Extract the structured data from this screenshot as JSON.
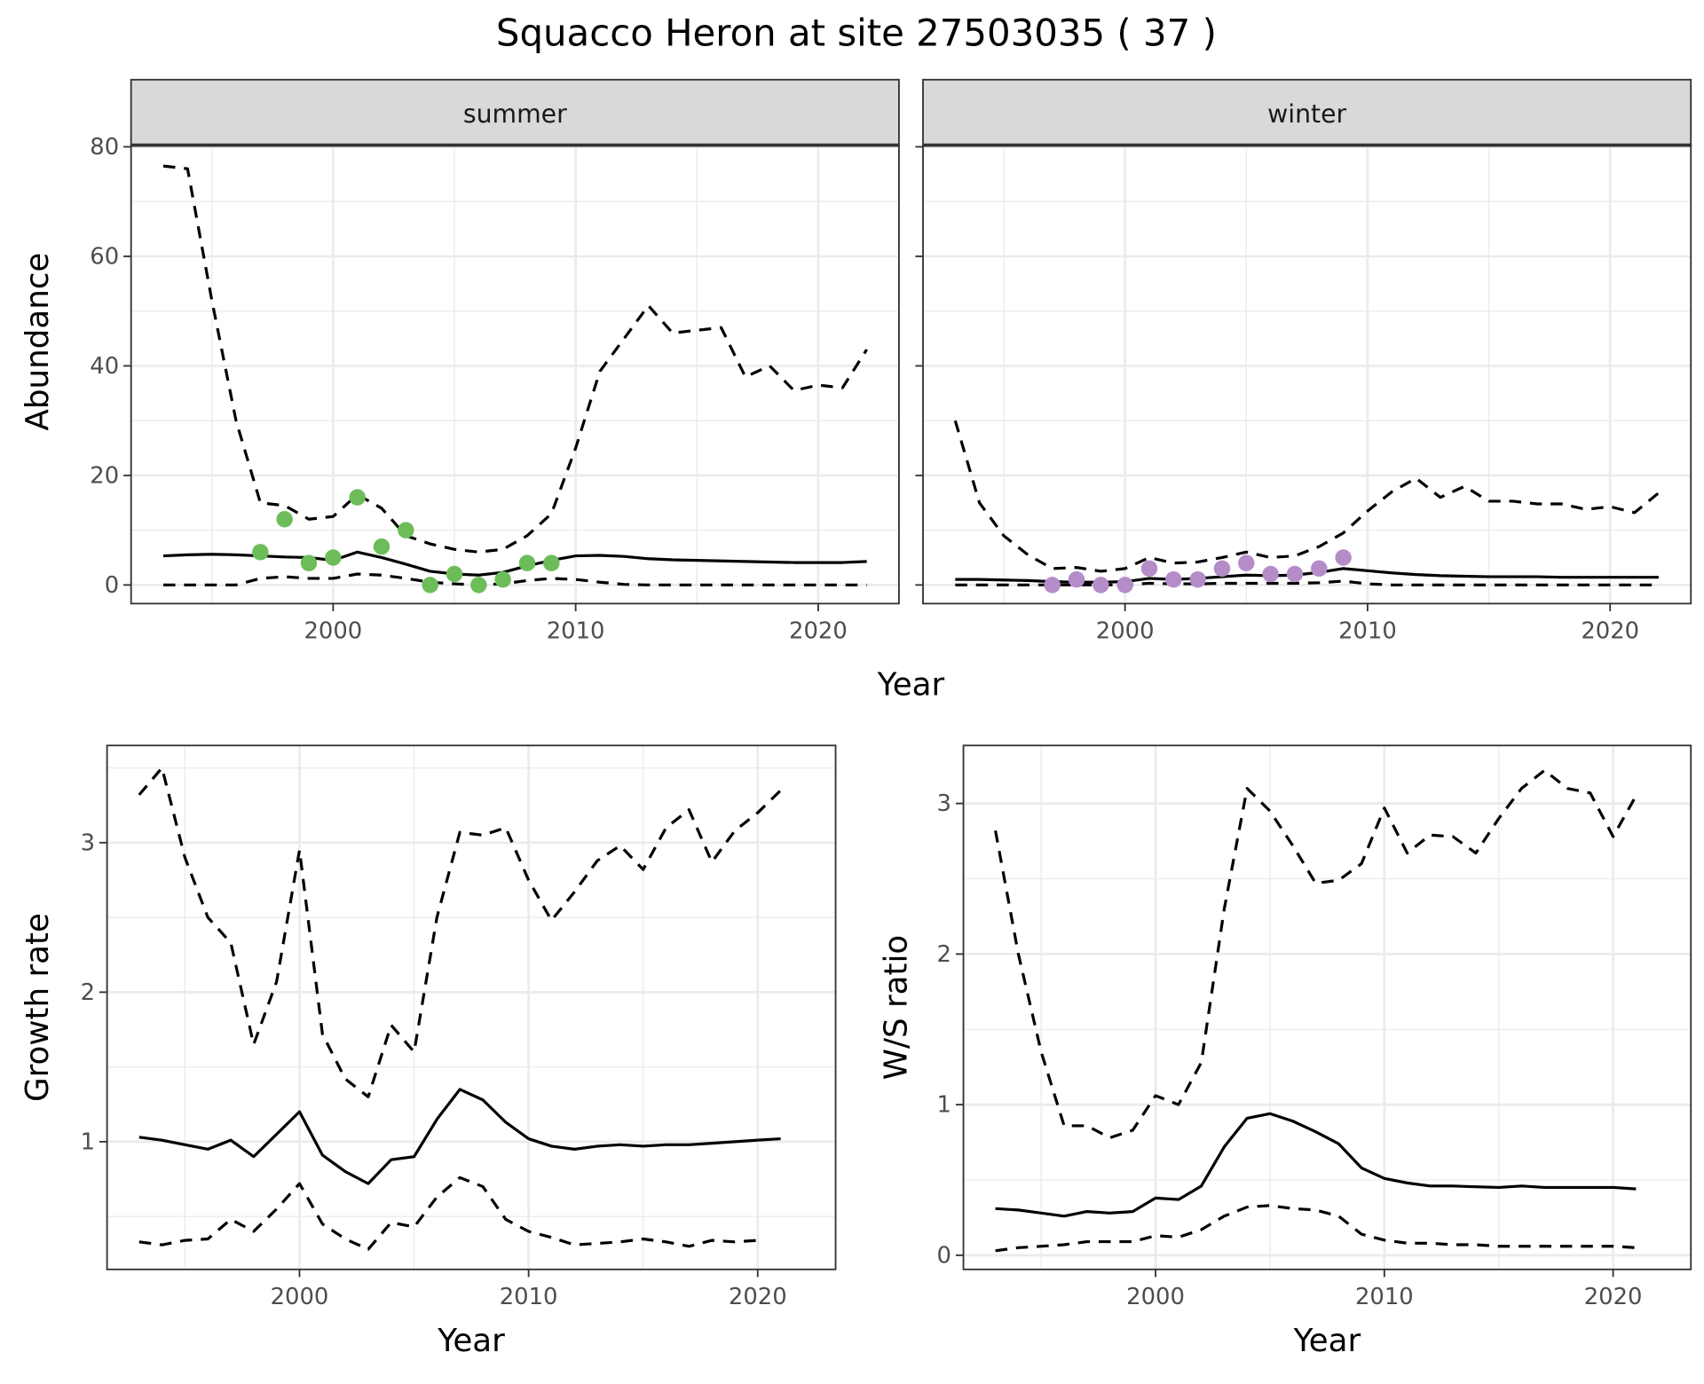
{
  "title": "Squacco Heron at site 27503035 ( 37 )",
  "colors": {
    "summer_points": "#6cbd5a",
    "winter_points": "#b48cc8",
    "line": "#000000",
    "strip": "#d9d9d9",
    "grid": "#ebebeb"
  },
  "chart_data": [
    {
      "id": "summer",
      "type": "line",
      "strip": "summer",
      "ylabel": "Abundance",
      "xlabel": "Year",
      "xlim": [
        1991.67,
        2023.33
      ],
      "ylim": [
        -3.4,
        80.3
      ],
      "xticks": [
        2000,
        2010,
        2020
      ],
      "yticks": [
        0,
        20,
        40,
        60,
        80
      ],
      "grid": true,
      "x": [
        1993,
        1994,
        1995,
        1996,
        1997,
        1998,
        1999,
        2000,
        2001,
        2002,
        2003,
        2004,
        2005,
        2006,
        2007,
        2008,
        2009,
        2010,
        2011,
        2012,
        2013,
        2014,
        2015,
        2016,
        2017,
        2018,
        2019,
        2020,
        2021,
        2022
      ],
      "series": [
        {
          "linetype": "dashed",
          "values": [
            76.5,
            76,
            52,
            30,
            15,
            14.5,
            12,
            12.5,
            16.5,
            14,
            9,
            7.5,
            6.5,
            6,
            6.5,
            9,
            13,
            25,
            39,
            45,
            51,
            46,
            46.5,
            47,
            38,
            40,
            35.5,
            36.5,
            36,
            43
          ]
        },
        {
          "linetype": "solid",
          "values": [
            5.3,
            5.5,
            5.6,
            5.5,
            5.3,
            5.1,
            5.0,
            4.5,
            6,
            5,
            3.8,
            2.5,
            2,
            1.8,
            2.3,
            3.5,
            4.5,
            5.3,
            5.4,
            5.2,
            4.8,
            4.6,
            4.5,
            4.4,
            4.3,
            4.2,
            4.1,
            4.1,
            4.1,
            4.3
          ]
        },
        {
          "linetype": "dashed",
          "values": [
            0,
            0,
            0,
            0,
            1.2,
            1.5,
            1.2,
            1.2,
            2,
            1.8,
            1.2,
            0.5,
            0.2,
            0,
            0.2,
            0.8,
            1.2,
            1,
            0.5,
            0.1,
            0,
            0,
            0,
            0,
            0,
            0,
            0,
            0,
            0,
            0
          ]
        }
      ],
      "points": {
        "color": "#6cbd5a",
        "x": [
          1997,
          1998,
          1999,
          2000,
          2001,
          2002,
          2003,
          2004,
          2005,
          2006,
          2007,
          2008,
          2009
        ],
        "y": [
          6,
          12,
          4,
          5,
          16,
          7,
          10,
          0,
          2,
          0,
          1,
          4,
          4
        ]
      }
    },
    {
      "id": "winter",
      "type": "line",
      "strip": "winter",
      "ylabel": "",
      "xlabel": "",
      "xlim": [
        1991.67,
        2023.33
      ],
      "ylim": [
        -3.4,
        80.3
      ],
      "xticks": [
        2000,
        2010,
        2020
      ],
      "yticks": [
        0,
        20,
        40,
        60,
        80
      ],
      "grid": true,
      "x": [
        1993,
        1994,
        1995,
        1996,
        1997,
        1998,
        1999,
        2000,
        2001,
        2002,
        2003,
        2004,
        2005,
        2006,
        2007,
        2008,
        2009,
        2010,
        2011,
        2012,
        2013,
        2014,
        2015,
        2016,
        2017,
        2018,
        2019,
        2020,
        2021,
        2022
      ],
      "series": [
        {
          "linetype": "dashed",
          "values": [
            30,
            15,
            9,
            5.5,
            3,
            3.2,
            2.5,
            3,
            5,
            4,
            4.2,
            5,
            6,
            5,
            5.3,
            7,
            9.5,
            13.5,
            17,
            19.5,
            16,
            18,
            15.3,
            15.3,
            14.8,
            14.8,
            13.8,
            14.3,
            13.2,
            16.8
          ]
        },
        {
          "linetype": "solid",
          "values": [
            1,
            1,
            0.9,
            0.8,
            0.6,
            0.5,
            0.5,
            0.6,
            1.2,
            1,
            1.2,
            1.5,
            1.8,
            1.7,
            1.8,
            2.3,
            3,
            2.6,
            2.2,
            1.9,
            1.7,
            1.6,
            1.5,
            1.5,
            1.5,
            1.4,
            1.4,
            1.4,
            1.4,
            1.4
          ]
        },
        {
          "linetype": "dashed",
          "values": [
            0,
            0,
            0,
            0,
            0,
            0,
            0,
            0,
            0.3,
            0.2,
            0.2,
            0.3,
            0.3,
            0.3,
            0.3,
            0.4,
            0.7,
            0.2,
            0,
            0,
            0,
            0,
            0,
            0,
            0,
            0,
            0,
            0,
            0,
            0
          ]
        }
      ],
      "points": {
        "color": "#b48cc8",
        "x": [
          1997,
          1998,
          1999,
          2000,
          2001,
          2002,
          2003,
          2004,
          2005,
          2006,
          2007,
          2008,
          2009
        ],
        "y": [
          0,
          1,
          0,
          0,
          3,
          1,
          1,
          3,
          4,
          2,
          2,
          3,
          5
        ]
      }
    },
    {
      "id": "growth",
      "type": "line",
      "ylabel": "Growth rate",
      "xlabel": "Year",
      "xlim": [
        1991.6,
        2023.4
      ],
      "ylim": [
        0.146,
        3.65
      ],
      "xticks": [
        2000,
        2010,
        2020
      ],
      "yticks": [
        1,
        2,
        3
      ],
      "grid": true,
      "x": [
        1993,
        1994,
        1995,
        1996,
        1997,
        1998,
        1999,
        2000,
        2001,
        2002,
        2003,
        2004,
        2005,
        2006,
        2007,
        2008,
        2009,
        2010,
        2011,
        2012,
        2013,
        2014,
        2015,
        2016,
        2017,
        2018,
        2019,
        2020,
        2021
      ],
      "series": [
        {
          "linetype": "dashed",
          "values": [
            3.32,
            3.5,
            2.9,
            2.5,
            2.33,
            1.65,
            2.07,
            2.95,
            1.72,
            1.42,
            1.3,
            1.78,
            1.6,
            2.5,
            3.07,
            3.05,
            3.1,
            2.75,
            2.48,
            2.67,
            2.88,
            2.98,
            2.82,
            3.1,
            3.22,
            2.87,
            3.08,
            3.2,
            3.35
          ]
        },
        {
          "linetype": "solid",
          "values": [
            1.03,
            1.01,
            0.98,
            0.95,
            1.01,
            0.9,
            1.05,
            1.2,
            0.91,
            0.8,
            0.72,
            0.88,
            0.9,
            1.15,
            1.35,
            1.28,
            1.13,
            1.02,
            0.97,
            0.95,
            0.97,
            0.98,
            0.97,
            0.98,
            0.98,
            0.99,
            1.0,
            1.01,
            1.02
          ]
        },
        {
          "linetype": "dashed",
          "values": [
            0.33,
            0.31,
            0.34,
            0.35,
            0.48,
            0.4,
            0.55,
            0.72,
            0.45,
            0.35,
            0.28,
            0.46,
            0.43,
            0.63,
            0.76,
            0.7,
            0.48,
            0.4,
            0.36,
            0.31,
            0.32,
            0.33,
            0.35,
            0.33,
            0.3,
            0.34,
            0.33,
            0.34,
            null
          ]
        }
      ]
    },
    {
      "id": "ws",
      "type": "line",
      "ylabel": "W/S ratio",
      "xlabel": "Year",
      "xlim": [
        1991.6,
        2023.4
      ],
      "ylim": [
        -0.094,
        3.385
      ],
      "xticks": [
        2000,
        2010,
        2020
      ],
      "yticks": [
        0,
        1,
        2,
        3
      ],
      "grid": true,
      "x": [
        1993,
        1994,
        1995,
        1996,
        1997,
        1998,
        1999,
        2000,
        2001,
        2002,
        2003,
        2004,
        2005,
        2006,
        2007,
        2008,
        2009,
        2010,
        2011,
        2012,
        2013,
        2014,
        2015,
        2016,
        2017,
        2018,
        2019,
        2020,
        2021
      ],
      "series": [
        {
          "linetype": "dashed",
          "values": [
            2.82,
            2.0,
            1.35,
            0.86,
            0.86,
            0.78,
            0.83,
            1.06,
            1.0,
            1.28,
            2.3,
            3.1,
            2.95,
            2.72,
            2.47,
            2.49,
            2.6,
            2.97,
            2.67,
            2.79,
            2.78,
            2.67,
            2.9,
            3.1,
            3.22,
            3.1,
            3.07,
            2.78,
            3.05
          ]
        },
        {
          "linetype": "solid",
          "values": [
            0.31,
            0.3,
            0.28,
            0.26,
            0.29,
            0.28,
            0.29,
            0.38,
            0.37,
            0.46,
            0.72,
            0.91,
            0.94,
            0.89,
            0.82,
            0.74,
            0.58,
            0.51,
            0.48,
            0.46,
            0.46,
            0.455,
            0.45,
            0.46,
            0.45,
            0.45,
            0.45,
            0.45,
            0.44
          ]
        },
        {
          "linetype": "dashed",
          "values": [
            0.03,
            0.05,
            0.06,
            0.07,
            0.09,
            0.09,
            0.09,
            0.13,
            0.12,
            0.17,
            0.26,
            0.32,
            0.33,
            0.31,
            0.3,
            0.26,
            0.14,
            0.1,
            0.08,
            0.08,
            0.07,
            0.07,
            0.06,
            0.06,
            0.06,
            0.06,
            0.06,
            0.06,
            0.05
          ]
        }
      ]
    }
  ]
}
